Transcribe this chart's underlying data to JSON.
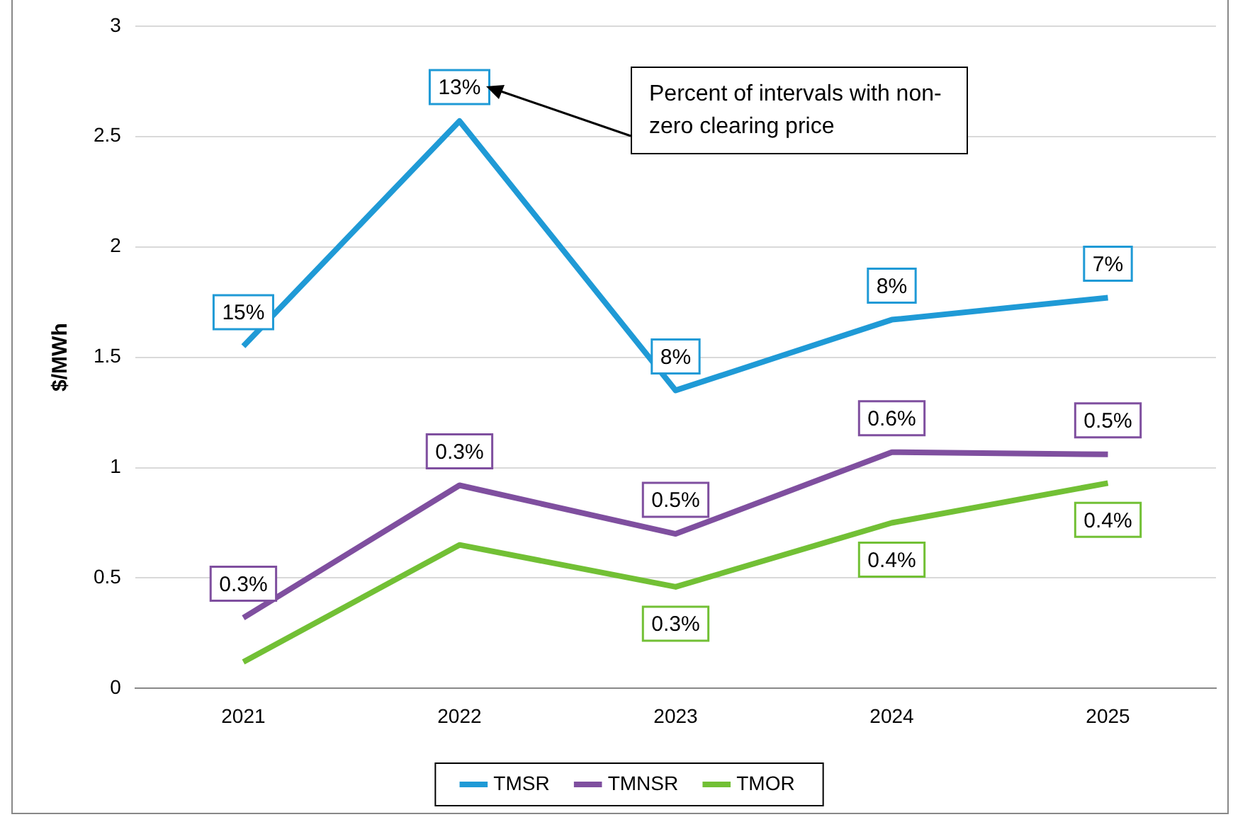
{
  "chart_data": {
    "type": "line",
    "ylabel": "$/MWh",
    "categories": [
      "2021",
      "2022",
      "2023",
      "2024",
      "2025"
    ],
    "series": [
      {
        "name": "TMSR",
        "color": "#1f9ad6",
        "values": [
          1.55,
          2.57,
          1.35,
          1.67,
          1.77
        ]
      },
      {
        "name": "TMNSR",
        "color": "#7f4f9f",
        "values": [
          0.32,
          0.92,
          0.7,
          1.07,
          1.06
        ]
      },
      {
        "name": "TMOR",
        "color": "#72c035",
        "values": [
          0.12,
          0.65,
          0.46,
          0.75,
          0.93
        ]
      }
    ],
    "ylim": [
      0,
      3
    ],
    "yticks": [
      0,
      0.5,
      1,
      1.5,
      2,
      2.5,
      3
    ],
    "grid": "y",
    "legend": "bottom",
    "marker": "none",
    "line_style": "solid",
    "annotations": [
      "Percent of intervals with non-zero clearing price",
      {
        "text": "15%",
        "x": "2021",
        "y": 1.55
      },
      {
        "text": "13%",
        "x": "2022",
        "y": 2.57
      },
      {
        "text": "8%",
        "x": "2023",
        "y": 1.35
      },
      {
        "text": "8%",
        "x": "2024",
        "y": 1.67
      },
      {
        "text": "7%",
        "x": "2025",
        "y": 1.77
      },
      {
        "text": "0.3%",
        "x": "2021",
        "y": 0.32
      },
      {
        "text": "0.3%",
        "x": "2022",
        "y": 0.92
      },
      {
        "text": "0.5%",
        "x": "2023",
        "y": 0.7
      },
      {
        "text": "0.6%",
        "x": "2024",
        "y": 1.07
      },
      {
        "text": "0.5%",
        "x": "2025",
        "y": 1.06
      },
      {
        "text": "0.3%",
        "x": "2023",
        "y": 0.46
      },
      {
        "text": "0.4%",
        "x": "2024",
        "y": 0.75
      },
      {
        "text": "0.4%",
        "x": "2025",
        "y": 0.93
      }
    ]
  }
}
